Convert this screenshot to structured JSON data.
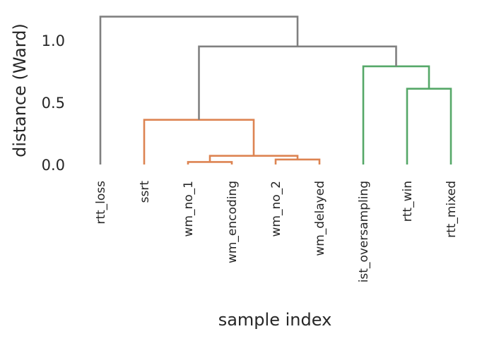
{
  "chart_data": {
    "type": "dendrogram",
    "title": "",
    "xlabel": "sample index",
    "ylabel": "distance (Ward)",
    "ylim": [
      0,
      1.2
    ],
    "yticks": [
      0.0,
      0.5,
      1.0
    ],
    "ytick_labels": [
      "0.0",
      "0.5",
      "1.0"
    ],
    "grid": false,
    "leaves": [
      "rtt_loss",
      "ssrt",
      "wm_no_1",
      "wm_encoding",
      "wm_no_2",
      "wm_delayed",
      "ist_oversampling",
      "rtt_win",
      "rtt_mixed"
    ],
    "colors": {
      "orange": "#dd8452",
      "green": "#55a868",
      "gray": "#808080"
    },
    "merges": [
      {
        "left": "wm_no_1",
        "right": "wm_encoding",
        "height": 0.02,
        "color": "orange"
      },
      {
        "left": "wm_no_2",
        "right": "wm_delayed",
        "height": 0.04,
        "color": "orange"
      },
      {
        "left": "{wm_no_1,wm_encoding}",
        "right": "{wm_no_2,wm_delayed}",
        "height": 0.07,
        "color": "orange"
      },
      {
        "left": "ssrt",
        "right": "{wm_no_1,wm_encoding,wm_no_2,wm_delayed}",
        "height": 0.36,
        "color": "orange"
      },
      {
        "left": "rtt_win",
        "right": "rtt_mixed",
        "height": 0.61,
        "color": "green"
      },
      {
        "left": "ist_oversampling",
        "right": "{rtt_win,rtt_mixed}",
        "height": 0.79,
        "color": "green"
      },
      {
        "left": "{ssrt,...}",
        "right": "{ist_oversampling,...}",
        "height": 0.95,
        "color": "gray"
      },
      {
        "left": "rtt_loss",
        "right": "{ssrt,...,rtt_mixed}",
        "height": 1.19,
        "color": "gray"
      }
    ]
  }
}
